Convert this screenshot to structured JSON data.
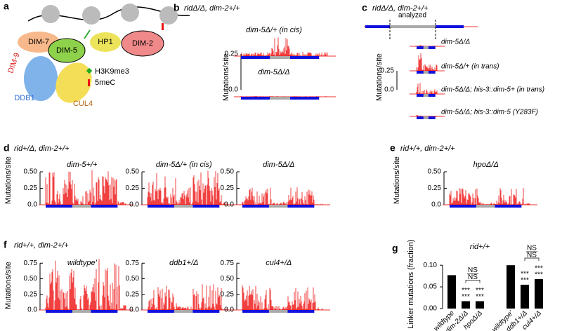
{
  "panels": {
    "a": {
      "label": "a",
      "proteins": [
        "DIM-9",
        "DIM-7",
        "DIM-5",
        "HP1",
        "DIM-2",
        "DDB1",
        "CUL4"
      ],
      "legend": [
        "H3K9me3",
        "5meC"
      ]
    },
    "b": {
      "label": "b",
      "title": "ridΔ/Δ, dim-2+/+",
      "y_label": "Mutations/site",
      "yticks": [
        0.25,
        {
          "value": 0,
          "label": "0.0"
        }
      ],
      "tracks": [
        "dim-5Δ/+ (in cis)",
        "dim-5Δ/Δ"
      ]
    },
    "c": {
      "label": "c",
      "title": "ridΔ/Δ, dim-2+/+",
      "region": "analyzed",
      "y_label": "Mutations/site",
      "yticks": [
        0.25,
        {
          "value": 0,
          "label": "0.0"
        }
      ],
      "tracks": [
        "dim-5Δ/Δ",
        "dim-5Δ/+ (in trans)",
        "dim-5Δ/Δ; his-3::dim-5+ (in trans)",
        "dim-5Δ/Δ; his-3::dim-5 (Y283F)"
      ]
    },
    "d": {
      "label": "d",
      "title": "rid+/Δ, dim-2+/+",
      "y_label": "Mutations/site",
      "yticks": [
        {
          "value": 0.5,
          "label": "0.50"
        },
        0.25,
        {
          "value": 0,
          "label": "0.0"
        }
      ],
      "tracks": [
        "dim-5+/+",
        "dim-5Δ/+ (in cis)",
        "dim-5Δ/Δ"
      ]
    },
    "e": {
      "label": "e",
      "title": "rid+/+, dim-2+/+",
      "y_label": "Mutations/site",
      "yticks": [
        {
          "value": 0.5,
          "label": "0.50"
        },
        0.25,
        {
          "value": 0,
          "label": "0.0"
        }
      ],
      "tracks": [
        "hpoΔ/Δ"
      ]
    },
    "f": {
      "label": "f",
      "title": "rid+/+, dim-2+/+",
      "y_label": "Mutations/site",
      "yticks": [
        0.75,
        {
          "value": 0.5,
          "label": "0.50"
        },
        0.25,
        {
          "value": 0,
          "label": "0.0"
        }
      ],
      "tracks": [
        "wildtype'",
        "ddb1+/Δ",
        "cul4+/Δ"
      ]
    },
    "g": {
      "label": "g",
      "type": "bar",
      "title": "rid+/+",
      "y_label": "Linker mutations (fraction)",
      "categories": [
        "wildtype",
        "dim-2Δ/Δ",
        "hpoΔ/Δ",
        "wildtype'",
        "ddb1+/Δ",
        "cul4+/Δ"
      ],
      "values": [
        0.077,
        0.017,
        0.017,
        0.1,
        0.055,
        0.068
      ],
      "color": "#000000",
      "ylim": [
        0,
        0.11
      ],
      "yticks": [
        {
          "value": 0,
          "label": "0.00"
        },
        {
          "value": 0.05,
          "label": "0.05"
        },
        {
          "value": 0.1,
          "label": "0.10"
        }
      ],
      "significance": [
        null,
        [
          "***",
          "***"
        ],
        [
          "***",
          "***"
        ],
        null,
        [
          "***",
          "***"
        ],
        [
          "***",
          "***"
        ]
      ],
      "comparisons": [
        [
          "NS",
          "NS"
        ],
        [
          "NS",
          "NS"
        ]
      ]
    }
  }
}
